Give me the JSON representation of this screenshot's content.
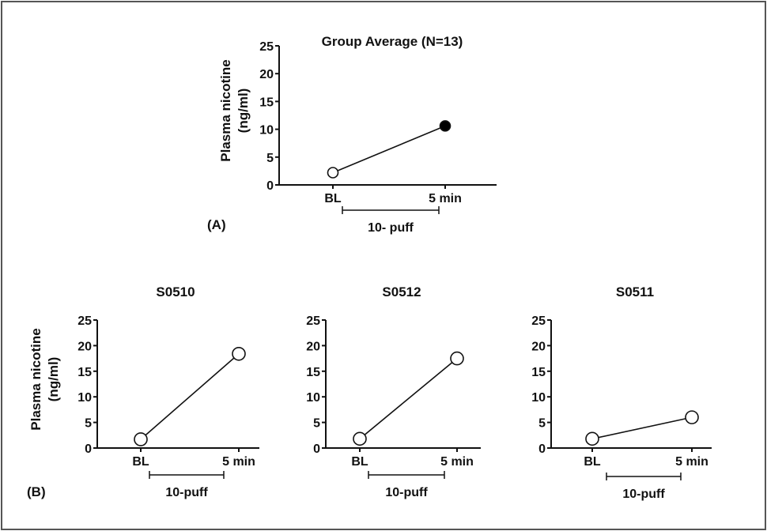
{
  "colors": {
    "line": "#111111",
    "open_marker": "#ffffff",
    "filled_marker": "#000000",
    "frame": "#555555"
  },
  "panel_labels": {
    "a": "(A)",
    "b": "(B)"
  },
  "y_axis_label": {
    "line1": "Plasma nicotine",
    "line2": "(ng/ml)"
  },
  "chart_data": [
    {
      "type": "line",
      "panel": "A",
      "title": "Group Average (N=13)",
      "categories": [
        "BL",
        "5 min"
      ],
      "series": [
        {
          "values": [
            2.2,
            10.6
          ],
          "markers": [
            "open",
            "filled"
          ]
        }
      ],
      "ylim": [
        0,
        25
      ],
      "yticks": [
        0,
        5,
        10,
        15,
        20,
        25
      ],
      "bracket_label": "10- puff",
      "ylabel": "Plasma nicotine (ng/ml)"
    },
    {
      "type": "line",
      "panel": "B",
      "title": "S0510",
      "categories": [
        "BL",
        "5 min"
      ],
      "series": [
        {
          "values": [
            1.7,
            18.4
          ],
          "markers": [
            "open",
            "open"
          ]
        }
      ],
      "ylim": [
        0,
        25
      ],
      "yticks": [
        0,
        5,
        10,
        15,
        20,
        25
      ],
      "bracket_label": "10-puff",
      "ylabel": "Plasma nicotine (ng/ml)"
    },
    {
      "type": "line",
      "panel": "B",
      "title": "S0512",
      "categories": [
        "BL",
        "5 min"
      ],
      "series": [
        {
          "values": [
            1.8,
            17.5
          ],
          "markers": [
            "open",
            "open"
          ]
        }
      ],
      "ylim": [
        0,
        25
      ],
      "yticks": [
        0,
        5,
        10,
        15,
        20,
        25
      ],
      "bracket_label": "10-puff"
    },
    {
      "type": "line",
      "panel": "B",
      "title": "S0511",
      "categories": [
        "BL",
        "5 min"
      ],
      "series": [
        {
          "values": [
            1.8,
            6.0
          ],
          "markers": [
            "open",
            "open"
          ]
        }
      ],
      "ylim": [
        0,
        25
      ],
      "yticks": [
        0,
        5,
        10,
        15,
        20,
        25
      ],
      "bracket_label": "10-puff"
    }
  ]
}
